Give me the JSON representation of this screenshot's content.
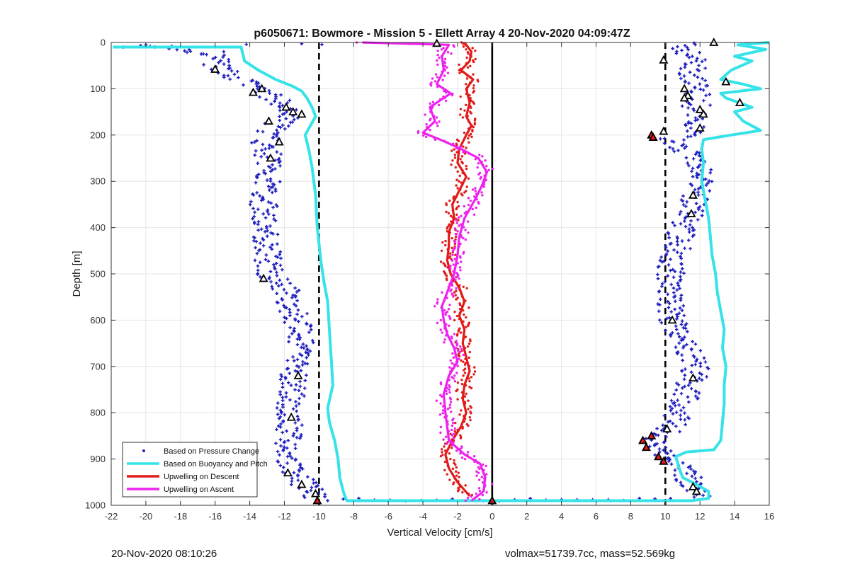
{
  "chart_data": {
    "type": "scatter",
    "title": "p6050671: Bowmore - Mission 5 - Ellett Array 4 20-Nov-2020 04:09:47Z",
    "xlabel": "Vertical Velocity [cm/s]",
    "ylabel": "Depth [m]",
    "xlim": [
      -22,
      16
    ],
    "ylim": [
      0,
      1000
    ],
    "y_reversed": true,
    "grid": true,
    "x_ticks": [
      -22,
      -20,
      -18,
      -16,
      -14,
      -12,
      -10,
      -8,
      -6,
      -4,
      -2,
      0,
      2,
      4,
      6,
      8,
      10,
      12,
      14,
      16
    ],
    "y_ticks": [
      0,
      100,
      200,
      300,
      400,
      500,
      600,
      700,
      800,
      900,
      1000
    ],
    "legend": {
      "position": "bottom-left",
      "entries": [
        {
          "label": "Based on Pressure Change",
          "color": "#1f1fbf",
          "style": "dot"
        },
        {
          "label": "Based on Buoyancy and Pitch",
          "color": "#35e3e8",
          "style": "line"
        },
        {
          "label": "Upwelling on Descent",
          "color": "#e31a1a",
          "style": "line"
        },
        {
          "label": "Upwelling on Ascent",
          "color": "#ee22ee",
          "style": "line"
        }
      ]
    },
    "reference_lines": [
      {
        "x": -10,
        "style": "dashed",
        "color": "#000000"
      },
      {
        "x": 10,
        "style": "dashed",
        "color": "#000000"
      },
      {
        "x": 0,
        "style": "solid",
        "color": "#000000"
      }
    ],
    "series": [
      {
        "name": "Based on Buoyancy and Pitch",
        "color": "#35e3e8",
        "style": "line",
        "points": [
          [
            -21.9,
            10
          ],
          [
            -14.5,
            10
          ],
          [
            -14.3,
            40
          ],
          [
            -13.5,
            60
          ],
          [
            -12.5,
            80
          ],
          [
            -11.5,
            95
          ],
          [
            -11,
            105
          ],
          [
            -10.7,
            120
          ],
          [
            -10.4,
            140
          ],
          [
            -10.2,
            160
          ],
          [
            -10.5,
            180
          ],
          [
            -10.8,
            200
          ],
          [
            -10.6,
            230
          ],
          [
            -10.4,
            270
          ],
          [
            -10.2,
            330
          ],
          [
            -10.1,
            400
          ],
          [
            -9.9,
            470
          ],
          [
            -9.7,
            520
          ],
          [
            -9.5,
            560
          ],
          [
            -9.4,
            620
          ],
          [
            -9.3,
            680
          ],
          [
            -9.2,
            740
          ],
          [
            -9.5,
            790
          ],
          [
            -9.4,
            820
          ],
          [
            -9.1,
            860
          ],
          [
            -8.9,
            900
          ],
          [
            -8.8,
            940
          ],
          [
            -8.6,
            970
          ],
          [
            -8.4,
            990
          ],
          [
            -3,
            990
          ],
          [
            0,
            990
          ],
          [
            6,
            990
          ],
          [
            11.5,
            990
          ],
          [
            12.5,
            985
          ],
          [
            12.5,
            970
          ],
          [
            11.8,
            955
          ],
          [
            11,
            940
          ],
          [
            10.8,
            920
          ],
          [
            10.6,
            895
          ],
          [
            11.2,
            885
          ],
          [
            12.8,
            880
          ],
          [
            13.2,
            860
          ],
          [
            13.3,
            820
          ],
          [
            13.4,
            780
          ],
          [
            13.4,
            740
          ],
          [
            13.5,
            700
          ],
          [
            13.3,
            660
          ],
          [
            13.4,
            620
          ],
          [
            13.2,
            580
          ],
          [
            13,
            540
          ],
          [
            12.9,
            500
          ],
          [
            12.7,
            460
          ],
          [
            12.6,
            420
          ],
          [
            12.5,
            380
          ],
          [
            12.3,
            340
          ],
          [
            12.1,
            300
          ],
          [
            12.2,
            260
          ],
          [
            12.1,
            230
          ],
          [
            12.2,
            210
          ],
          [
            13.8,
            200
          ],
          [
            15.5,
            190
          ],
          [
            14.5,
            170
          ],
          [
            14,
            150
          ],
          [
            15,
            140
          ],
          [
            13.5,
            120
          ],
          [
            13.2,
            110
          ],
          [
            15.5,
            100
          ],
          [
            14.5,
            90
          ],
          [
            13.2,
            80
          ],
          [
            13.8,
            60
          ],
          [
            15,
            40
          ],
          [
            14,
            30
          ],
          [
            15.8,
            15
          ],
          [
            14.2,
            5
          ],
          [
            16,
            0
          ]
        ]
      },
      {
        "name": "Upwelling on Descent",
        "color": "#e31a1a",
        "style": "line",
        "points": [
          [
            -1.6,
            0
          ],
          [
            -1.2,
            20
          ],
          [
            -1.3,
            40
          ],
          [
            -1.8,
            60
          ],
          [
            -1.1,
            80
          ],
          [
            -1.5,
            100
          ],
          [
            -1.3,
            130
          ],
          [
            -1.5,
            160
          ],
          [
            -1.2,
            180
          ],
          [
            -1.5,
            200
          ],
          [
            -1.9,
            230
          ],
          [
            -2,
            260
          ],
          [
            -1.5,
            290
          ],
          [
            -1.9,
            320
          ],
          [
            -2.3,
            350
          ],
          [
            -2.2,
            380
          ],
          [
            -2.5,
            410
          ],
          [
            -2.5,
            440
          ],
          [
            -2.6,
            470
          ],
          [
            -2.4,
            500
          ],
          [
            -1.9,
            530
          ],
          [
            -1.6,
            560
          ],
          [
            -1.9,
            590
          ],
          [
            -1.6,
            620
          ],
          [
            -1.7,
            650
          ],
          [
            -1.5,
            680
          ],
          [
            -1.3,
            710
          ],
          [
            -1.6,
            740
          ],
          [
            -1.7,
            770
          ],
          [
            -1.5,
            800
          ],
          [
            -1.8,
            830
          ],
          [
            -2.3,
            860
          ],
          [
            -2.7,
            890
          ],
          [
            -2.5,
            920
          ],
          [
            -2,
            950
          ],
          [
            -1.3,
            980
          ]
        ]
      },
      {
        "name": "Upwelling on Ascent",
        "color": "#ee22ee",
        "style": "line",
        "points": [
          [
            -7.5,
            0
          ],
          [
            -2.5,
            5
          ],
          [
            -2.9,
            30
          ],
          [
            -2.8,
            60
          ],
          [
            -3.2,
            90
          ],
          [
            -2.4,
            110
          ],
          [
            -3.6,
            140
          ],
          [
            -3.3,
            170
          ],
          [
            -4,
            195
          ],
          [
            -3,
            210
          ],
          [
            -1.8,
            230
          ],
          [
            -0.8,
            250
          ],
          [
            -0.3,
            280
          ],
          [
            -0.6,
            310
          ],
          [
            -1,
            340
          ],
          [
            -1.6,
            380
          ],
          [
            -1.9,
            420
          ],
          [
            -2,
            460
          ],
          [
            -2.2,
            500
          ],
          [
            -2.6,
            540
          ],
          [
            -2.9,
            570
          ],
          [
            -2.8,
            600
          ],
          [
            -2.6,
            630
          ],
          [
            -2.2,
            660
          ],
          [
            -2,
            690
          ],
          [
            -2.5,
            720
          ],
          [
            -2.8,
            760
          ],
          [
            -2.7,
            800
          ],
          [
            -2.6,
            830
          ],
          [
            -2.5,
            860
          ],
          [
            -1.6,
            890
          ],
          [
            -0.7,
            910
          ],
          [
            -0.4,
            940
          ],
          [
            -0.5,
            970
          ],
          [
            -1.2,
            990
          ]
        ]
      }
    ],
    "markers": [
      {
        "name": "pressure-change-points",
        "color": "#1f1fbf",
        "shape": "plus"
      },
      {
        "name": "outlier-triangles",
        "stroke": "#000000",
        "fill": "#ffffff",
        "shape": "triangle"
      },
      {
        "name": "highlight-triangles",
        "stroke": "#000000",
        "fill": "#e31a1a",
        "shape": "triangle"
      }
    ],
    "highlight_triangle_points": [
      [
        9.2,
        200
      ],
      [
        9.3,
        205
      ],
      [
        9.2,
        850
      ],
      [
        8.7,
        860
      ],
      [
        8.9,
        875
      ],
      [
        9.6,
        895
      ],
      [
        9.9,
        905
      ],
      [
        -10.1,
        990
      ],
      [
        0,
        990
      ]
    ],
    "outlier_triangle_points": [
      [
        12.8,
        0
      ],
      [
        -3.2,
        2
      ],
      [
        9.9,
        38
      ],
      [
        -16,
        58
      ],
      [
        -13.3,
        100
      ],
      [
        -13.8,
        108
      ],
      [
        13.5,
        85
      ],
      [
        14.3,
        130
      ],
      [
        11.1,
        100
      ],
      [
        11.3,
        115
      ],
      [
        11.1,
        120
      ],
      [
        12,
        145
      ],
      [
        12.2,
        155
      ],
      [
        12,
        185
      ],
      [
        -11.9,
        140
      ],
      [
        -11,
        155
      ],
      [
        -11.5,
        150
      ],
      [
        -12.9,
        170
      ],
      [
        9.9,
        192
      ],
      [
        -12.3,
        215
      ],
      [
        -12.8,
        250
      ],
      [
        11.6,
        330
      ],
      [
        11.5,
        370
      ],
      [
        -13.2,
        510
      ],
      [
        10.4,
        600
      ],
      [
        -11.2,
        720
      ],
      [
        11.6,
        725
      ],
      [
        -11.6,
        810
      ],
      [
        10.1,
        835
      ],
      [
        -11.8,
        930
      ],
      [
        11.6,
        960
      ],
      [
        11.8,
        970
      ],
      [
        -11,
        955
      ],
      [
        -10.2,
        975
      ]
    ]
  },
  "footer": {
    "left_text": "20-Nov-2020 08:10:26",
    "right_text": "volmax=51739.7cc, mass=52.569kg"
  }
}
